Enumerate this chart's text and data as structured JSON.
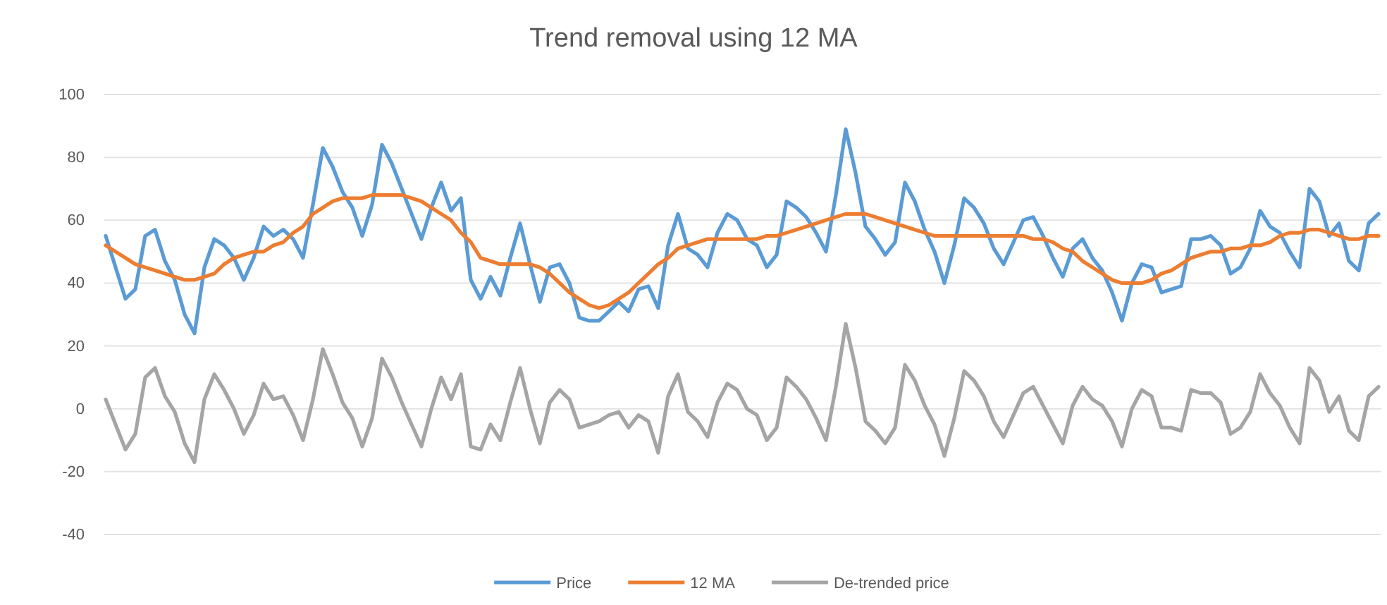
{
  "chart_data": {
    "type": "line",
    "title": "Trend removal using 12 MA",
    "categories": [
      null,
      null,
      null,
      null,
      null,
      null,
      null,
      null,
      null,
      null,
      null,
      null,
      null,
      null,
      null,
      null,
      null,
      null,
      null,
      null,
      null,
      null,
      null,
      null,
      null,
      null,
      null,
      null,
      null,
      null,
      null,
      null,
      null,
      null,
      null,
      null,
      null,
      null,
      null,
      null,
      null,
      null,
      null,
      null,
      null,
      null,
      null,
      null,
      null,
      null,
      null,
      null,
      null,
      null,
      null,
      null,
      null,
      null,
      null,
      null,
      null,
      null,
      null,
      null,
      null,
      null,
      null,
      null,
      null,
      null,
      null,
      null,
      null,
      null,
      null,
      null,
      null,
      null,
      null,
      null,
      null,
      null,
      null,
      null,
      null,
      null,
      null,
      null,
      null,
      null,
      null,
      null,
      null,
      null,
      null,
      null,
      null,
      null,
      null,
      null,
      null,
      null,
      null,
      null,
      null,
      null,
      null,
      null,
      null,
      null,
      null,
      null,
      null,
      null,
      null,
      null,
      null,
      null,
      null,
      null,
      null,
      null,
      null,
      null,
      null,
      null,
      null,
      null,
      null,
      null
    ],
    "series": [
      {
        "name": "Price",
        "color": "#5b9bd5",
        "values": [
          55,
          45,
          35,
          38,
          55,
          57,
          47,
          41,
          30,
          24,
          45,
          54,
          52,
          48,
          41,
          48,
          58,
          55,
          57,
          54,
          48,
          65,
          83,
          77,
          69,
          64,
          55,
          65,
          84,
          78,
          70,
          62,
          54,
          64,
          72,
          63,
          67,
          41,
          35,
          42,
          36,
          48,
          59,
          46,
          34,
          45,
          46,
          40,
          29,
          28,
          28,
          31,
          34,
          31,
          38,
          39,
          32,
          52,
          62,
          51,
          49,
          45,
          56,
          62,
          60,
          54,
          52,
          45,
          49,
          66,
          64,
          61,
          56,
          50,
          68,
          89,
          75,
          58,
          54,
          49,
          53,
          72,
          66,
          57,
          50,
          40,
          52,
          67,
          64,
          59,
          51,
          46,
          53,
          60,
          61,
          55,
          48,
          42,
          51,
          54,
          48,
          44,
          37,
          28,
          40,
          46,
          45,
          37,
          38,
          39,
          54,
          54,
          55,
          52,
          43,
          45,
          51,
          63,
          58,
          56,
          50,
          45,
          70,
          66,
          55,
          59,
          47,
          44,
          59,
          62
        ]
      },
      {
        "name": "12 MA",
        "color": "#ed7d31",
        "values": [
          52,
          50,
          48,
          46,
          45,
          44,
          43,
          42,
          41,
          41,
          42,
          43,
          46,
          48,
          49,
          50,
          50,
          52,
          53,
          56,
          58,
          62,
          64,
          66,
          67,
          67,
          67,
          68,
          68,
          68,
          68,
          67,
          66,
          64,
          62,
          60,
          56,
          53,
          48,
          47,
          46,
          46,
          46,
          46,
          45,
          43,
          40,
          37,
          35,
          33,
          32,
          33,
          35,
          37,
          40,
          43,
          46,
          48,
          51,
          52,
          53,
          54,
          54,
          54,
          54,
          54,
          54,
          55,
          55,
          56,
          57,
          58,
          59,
          60,
          61,
          62,
          62,
          62,
          61,
          60,
          59,
          58,
          57,
          56,
          55,
          55,
          55,
          55,
          55,
          55,
          55,
          55,
          55,
          55,
          54,
          54,
          53,
          51,
          50,
          47,
          45,
          43,
          41,
          40,
          40,
          40,
          41,
          43,
          44,
          46,
          48,
          49,
          50,
          50,
          51,
          51,
          52,
          52,
          53,
          55,
          56,
          56,
          57,
          57,
          56,
          55,
          54,
          54,
          55,
          55
        ]
      },
      {
        "name": "De-trended price",
        "color": "#a5a5a5",
        "values": [
          3,
          -5,
          -13,
          -8,
          10,
          13,
          4,
          -1,
          -11,
          -17,
          3,
          11,
          6,
          0,
          -8,
          -2,
          8,
          3,
          4,
          -2,
          -10,
          3,
          19,
          11,
          2,
          -3,
          -12,
          -3,
          16,
          10,
          2,
          -5,
          -12,
          0,
          10,
          3,
          11,
          -12,
          -13,
          -5,
          -10,
          2,
          13,
          0,
          -11,
          2,
          6,
          3,
          -6,
          -5,
          -4,
          -2,
          -1,
          -6,
          -2,
          -4,
          -14,
          4,
          11,
          -1,
          -4,
          -9,
          2,
          8,
          6,
          0,
          -2,
          -10,
          -6,
          10,
          7,
          3,
          -3,
          -10,
          7,
          27,
          13,
          -4,
          -7,
          -11,
          -6,
          14,
          9,
          1,
          -5,
          -15,
          -3,
          12,
          9,
          4,
          -4,
          -9,
          -2,
          5,
          7,
          1,
          -5,
          -11,
          1,
          7,
          3,
          1,
          -4,
          -12,
          0,
          6,
          4,
          -6,
          -6,
          -7,
          6,
          5,
          5,
          2,
          -8,
          -6,
          -1,
          11,
          5,
          1,
          -6,
          -11,
          13,
          9,
          -1,
          4,
          -7,
          -10,
          4,
          7
        ]
      }
    ],
    "ylim": [
      -40,
      100
    ],
    "yticks": [
      -40,
      -20,
      0,
      20,
      40,
      60,
      80,
      100
    ],
    "grid": "y",
    "legend": "bottom",
    "tick_labels": "y",
    "marker": "none",
    "line_style": "solid"
  }
}
